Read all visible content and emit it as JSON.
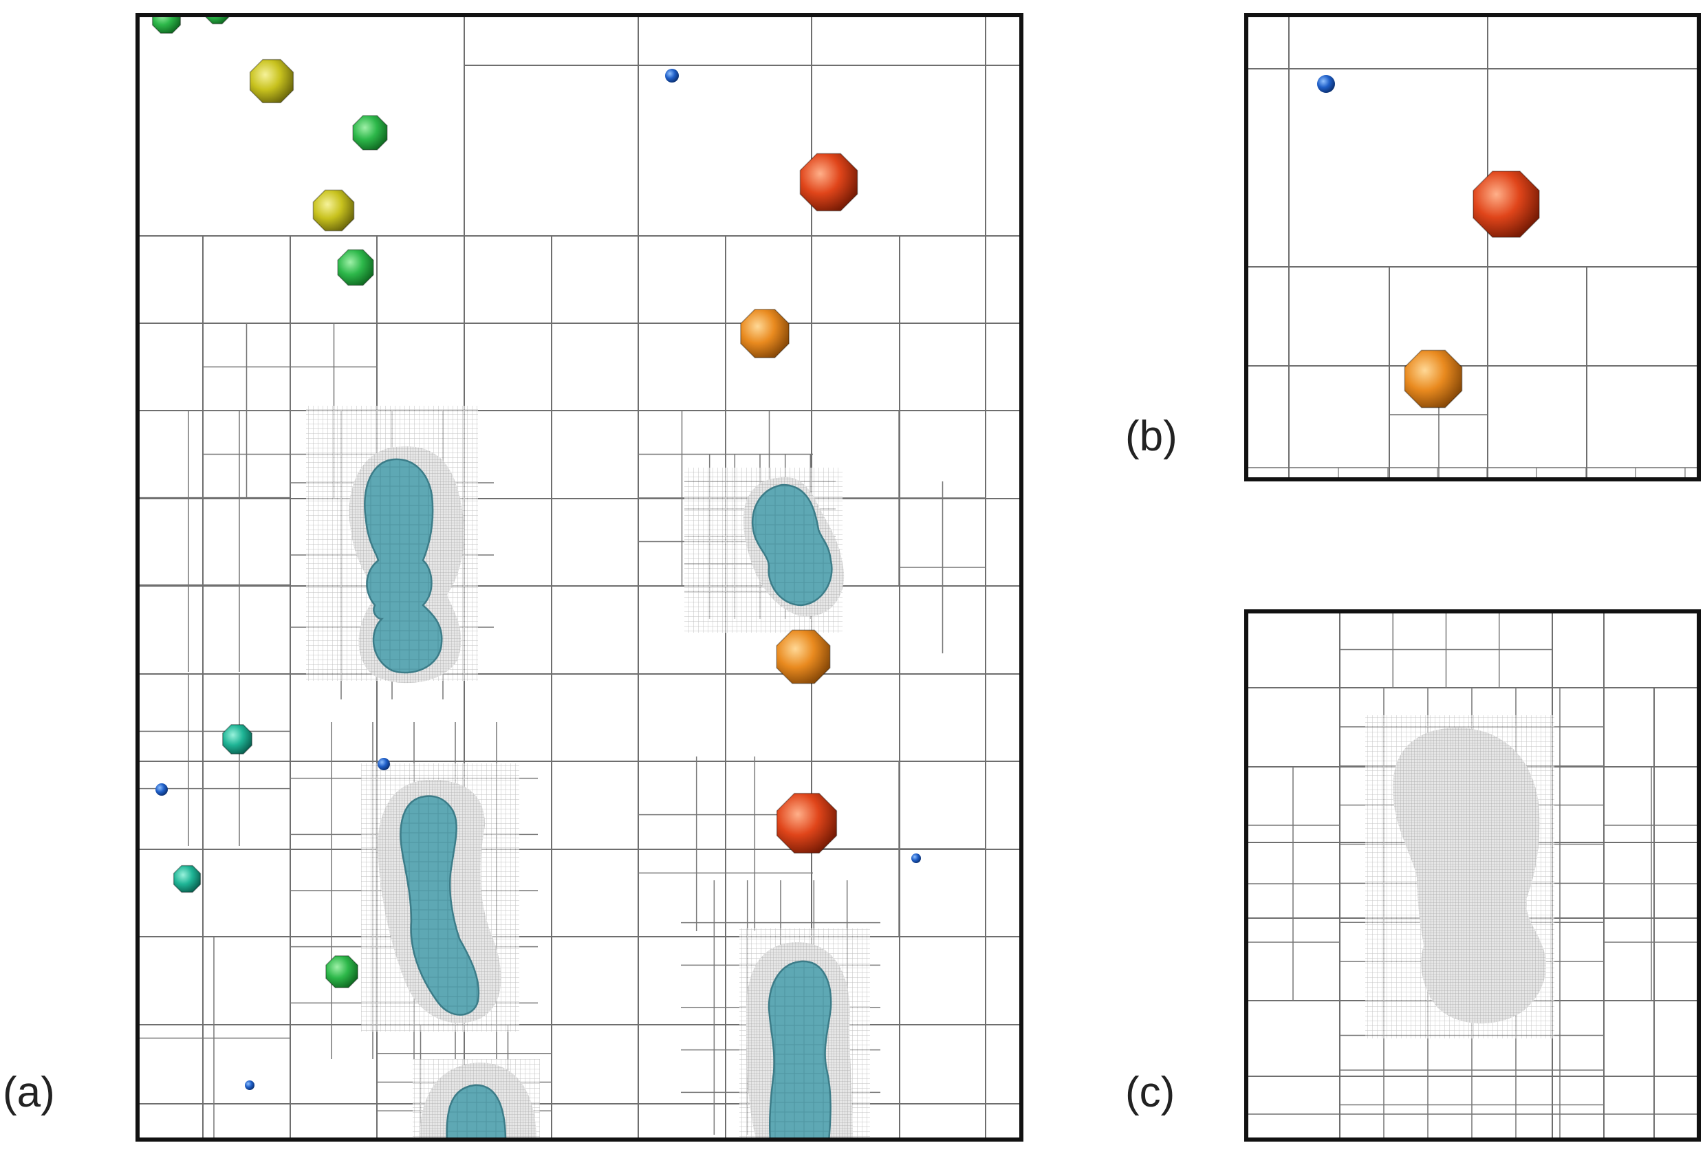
{
  "panels": {
    "a": {
      "label": "(a)"
    },
    "b": {
      "label": "(b)"
    },
    "c": {
      "label": "(c)"
    }
  },
  "colors": {
    "frame": "#111111",
    "grid": "#7a7a7a",
    "fine_grid": "#9a9a9a",
    "bubble_fill": "#5aa3b0",
    "bubble_edge": "#3f7f8a",
    "particle_green": "#2db84a",
    "particle_yellow": "#c8c21e",
    "particle_orange": "#e98a1f",
    "particle_red": "#e0451a",
    "particle_teal": "#1fb596",
    "particle_blue": "#1f5fc8"
  }
}
